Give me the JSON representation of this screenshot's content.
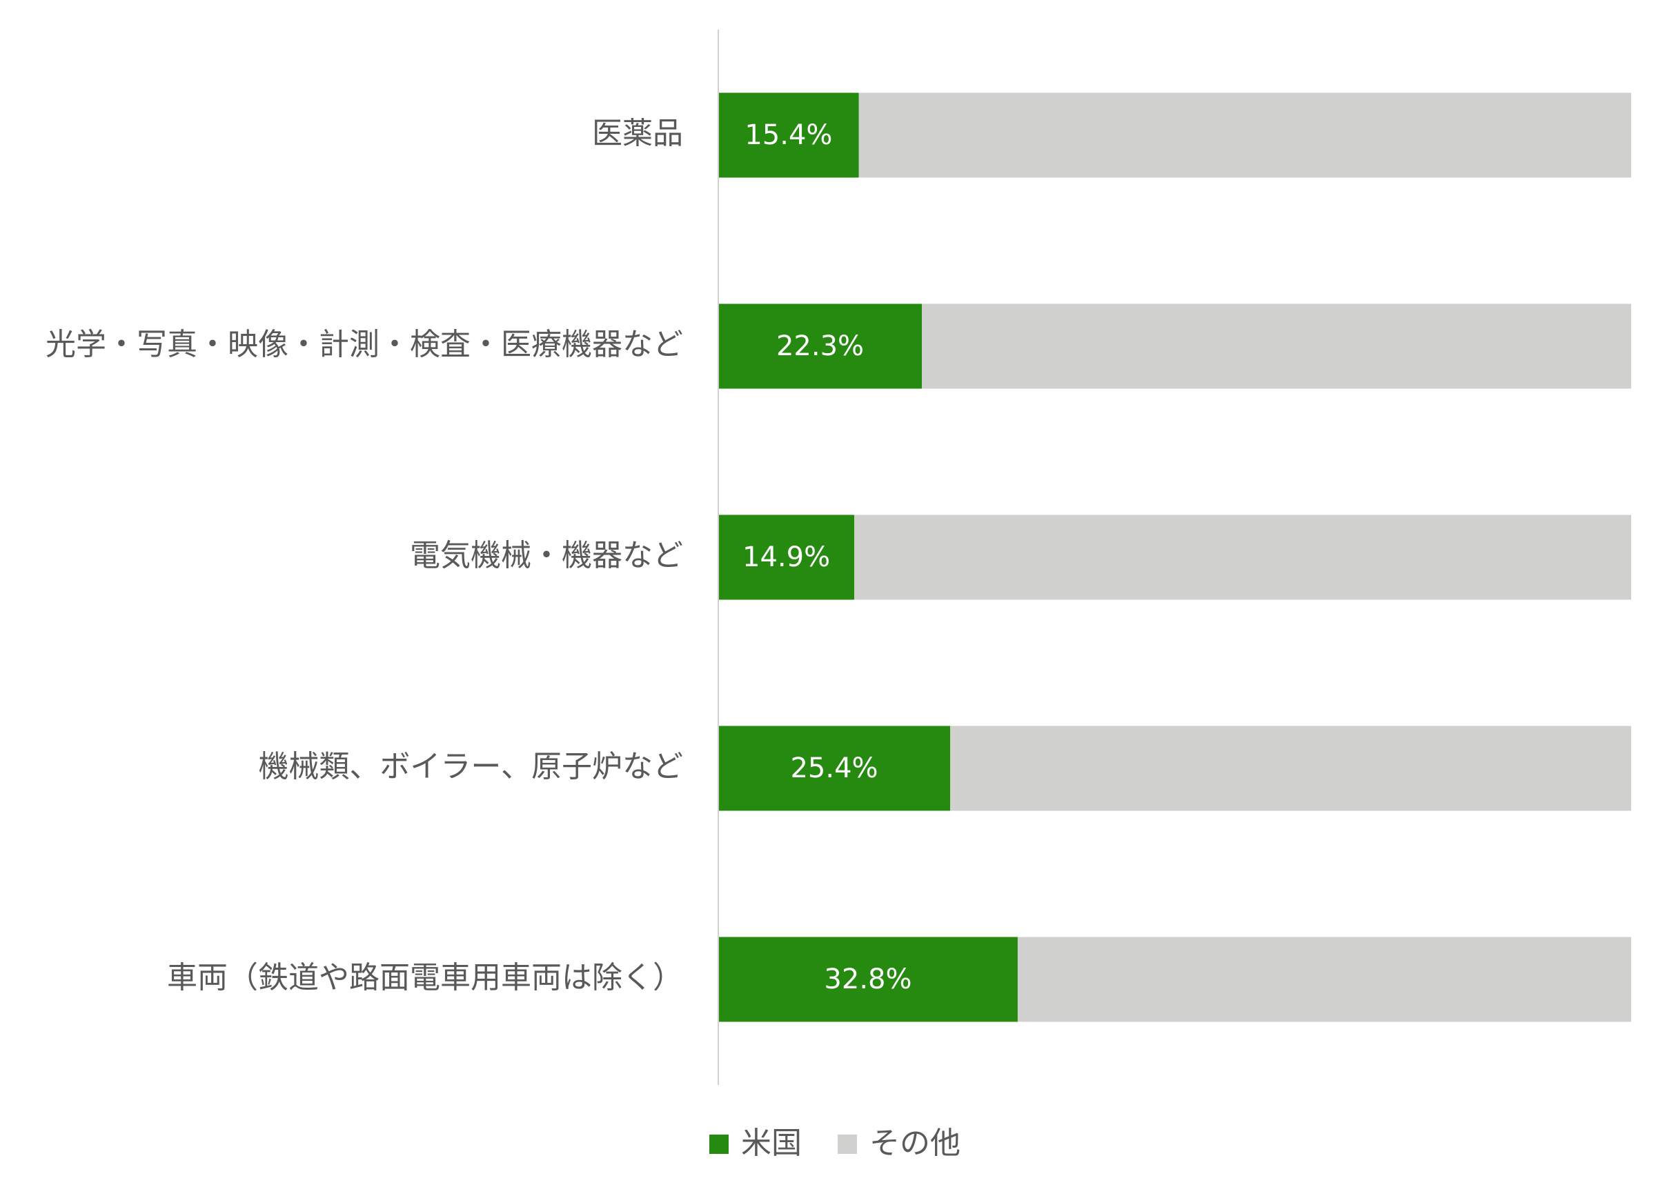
{
  "chart_data": {
    "type": "stacked-barh",
    "categories": [
      "医薬品",
      "光学・写真・映像・計測・検査・医療機器など",
      "電気機械・機器など",
      "機械類、ボイラー、原子炉など",
      "車両（鉄道や路面電車用車両は除く）"
    ],
    "series": [
      {
        "name": "米国",
        "color": "#268a10",
        "values": [
          15.4,
          22.3,
          14.9,
          25.4,
          32.8
        ],
        "value_labels": [
          "15.4%",
          "22.3%",
          "14.9%",
          "25.4%",
          "32.8%"
        ]
      },
      {
        "name": "その他",
        "color": "#d0d0ce",
        "values": [
          84.6,
          77.7,
          85.1,
          74.6,
          67.2
        ]
      }
    ],
    "xlim": [
      0,
      100
    ],
    "legend": "bottom"
  }
}
